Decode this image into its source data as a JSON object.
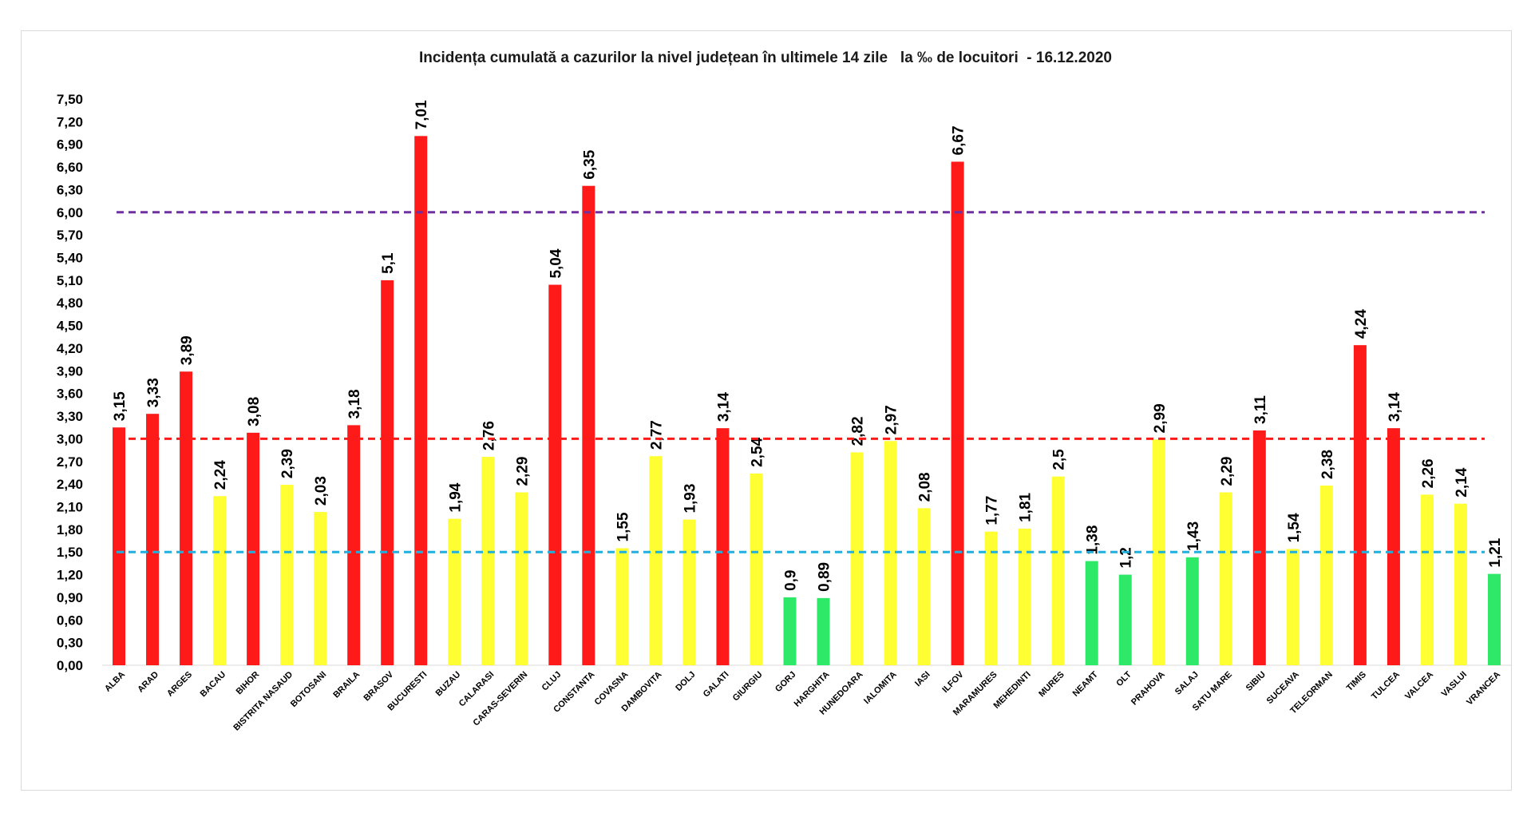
{
  "chart_data": {
    "type": "bar",
    "title": "Incidența cumulată a cazurilor la nivel județean în ultimele 14 zile   la ‰ de locuitori  - 16.12.2020",
    "xlabel": "",
    "ylabel": "",
    "ylim": [
      0,
      7.5
    ],
    "yticks": [
      "0,00",
      "0,30",
      "0,60",
      "0,90",
      "1,20",
      "1,50",
      "1,80",
      "2,10",
      "2,40",
      "2,70",
      "3,00",
      "3,30",
      "3,60",
      "3,90",
      "4,20",
      "4,50",
      "4,80",
      "5,10",
      "5,40",
      "5,70",
      "6,00",
      "6,30",
      "6,60",
      "6,90",
      "7,20",
      "7,50"
    ],
    "grid": false,
    "legend": "none",
    "categories": [
      "ALBA",
      "ARAD",
      "ARGES",
      "BACAU",
      "BIHOR",
      "BISTRITA NASAUD",
      "BOTOSANI",
      "BRAILA",
      "BRASOV",
      "BUCURESTI",
      "BUZAU",
      "CALARASI",
      "CARAS-SEVERIN",
      "CLUJ",
      "CONSTANTA",
      "COVASNA",
      "DAMBOVITA",
      "DOLJ",
      "GALATI",
      "GIURGIU",
      "GORJ",
      "HARGHITA",
      "HUNEDOARA",
      "IALOMITA",
      "IASI",
      "ILFOV",
      "MARAMURES",
      "MEHEDINTI",
      "MURES",
      "NEAMT",
      "OLT",
      "PRAHOVA",
      "SALAJ",
      "SATU MARE",
      "SIBIU",
      "SUCEAVA",
      "TELEORMAN",
      "TIMIS",
      "TULCEA",
      "VALCEA",
      "VASLUI",
      "VRANCEA"
    ],
    "values": [
      3.15,
      3.33,
      3.89,
      2.24,
      3.08,
      2.39,
      2.03,
      3.18,
      5.1,
      7.01,
      1.94,
      2.76,
      2.29,
      5.04,
      6.35,
      1.55,
      2.77,
      1.93,
      3.14,
      2.54,
      0.9,
      0.89,
      2.82,
      2.97,
      2.08,
      6.67,
      1.77,
      1.81,
      2.5,
      1.38,
      1.2,
      2.99,
      1.43,
      2.29,
      3.11,
      1.54,
      2.38,
      4.24,
      3.14,
      2.26,
      2.14,
      1.21
    ],
    "value_labels": [
      "3,15",
      "3,33",
      "3,89",
      "2,24",
      "3,08",
      "2,39",
      "2,03",
      "3,18",
      "5,1",
      "7,01",
      "1,94",
      "2,76",
      "2,29",
      "5,04",
      "6,35",
      "1,55",
      "2,77",
      "1,93",
      "3,14",
      "2,54",
      "0,9",
      "0,89",
      "2,82",
      "2,97",
      "2,08",
      "6,67",
      "1,77",
      "1,81",
      "2,5",
      "1,38",
      "1,2",
      "2,99",
      "1,43",
      "2,29",
      "3,11",
      "1,54",
      "2,38",
      "4,24",
      "3,14",
      "2,26",
      "2,14",
      "1,21"
    ],
    "bar_colors": [
      "#ff1a1a",
      "#ff1a1a",
      "#ff1a1a",
      "#ffff33",
      "#ff1a1a",
      "#ffff33",
      "#ffff33",
      "#ff1a1a",
      "#ff1a1a",
      "#ff1a1a",
      "#ffff33",
      "#ffff33",
      "#ffff33",
      "#ff1a1a",
      "#ff1a1a",
      "#ffff33",
      "#ffff33",
      "#ffff33",
      "#ff1a1a",
      "#ffff33",
      "#2ee868",
      "#2ee868",
      "#ffff33",
      "#ffff33",
      "#ffff33",
      "#ff1a1a",
      "#ffff33",
      "#ffff33",
      "#ffff33",
      "#2ee868",
      "#2ee868",
      "#ffff33",
      "#2ee868",
      "#ffff33",
      "#ff1a1a",
      "#ffff33",
      "#ffff33",
      "#ff1a1a",
      "#ff1a1a",
      "#ffff33",
      "#ffff33",
      "#2ee868"
    ],
    "reference_lines": [
      {
        "value": 6.0,
        "color": "#7030a0",
        "style": "dashed"
      },
      {
        "value": 3.0,
        "color": "#ff1a1a",
        "style": "dashed"
      },
      {
        "value": 1.5,
        "color": "#1fb0e0",
        "style": "dashed"
      }
    ]
  }
}
